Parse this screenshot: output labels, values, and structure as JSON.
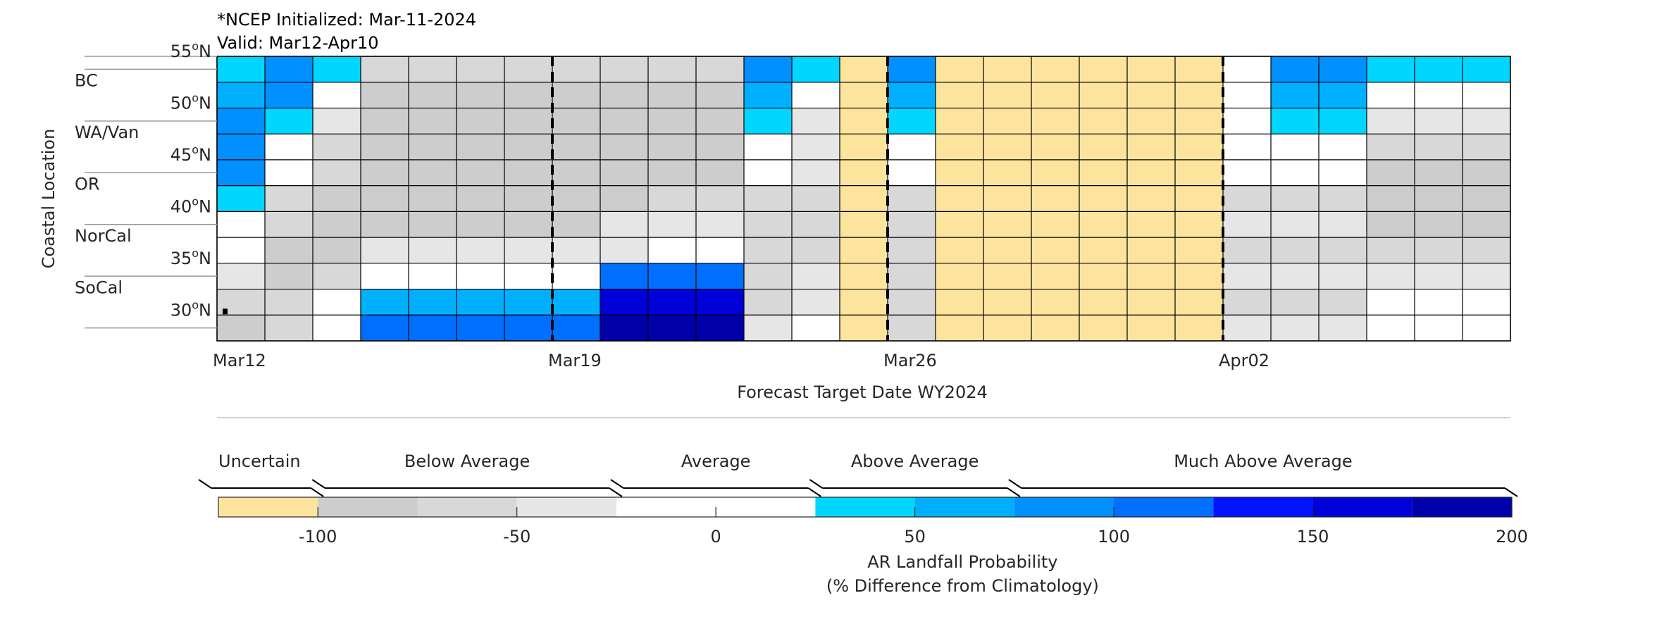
{
  "header": {
    "initialized": "*NCEP Initialized: Mar-11-2024",
    "valid": "Valid: Mar12-Apr10"
  },
  "chart_data": {
    "type": "heatmap",
    "xlabel": "Forecast Target Date WY2024",
    "ylabel": "Coastal Location",
    "x_tick_labels": [
      "Mar12",
      "Mar19",
      "Mar26",
      "Apr02"
    ],
    "x_tick_columns": [
      0,
      7,
      14,
      21
    ],
    "dashed_line_columns": [
      7,
      14,
      21
    ],
    "lat_tick_labels": [
      "55°N",
      "50°N",
      "45°N",
      "40°N",
      "35°N",
      "30°N"
    ],
    "region_labels": [
      "BC",
      "WA/Van",
      "OR",
      "NorCal",
      "SoCal"
    ],
    "num_columns": 27,
    "row_latitudes": [
      55,
      52.5,
      50,
      47.5,
      45,
      42.5,
      40,
      37.5,
      35,
      32.5,
      30,
      27.5
    ],
    "category_codes": {
      "U": "Uncertain",
      "g1": "Below Average (-100 to -75)",
      "g2": "Below Average (-75 to -50)",
      "g3": "Below Average (-50 to -25)",
      "w": "Average (-25 to 25)",
      "b1": "Above Average (25 to 50)",
      "b2": "Above Average (50 to 75)",
      "b3": "Much Above Average (75 to 100)",
      "b4": "Much Above Average (100 to 125)",
      "b5": "Much Above Average (125 to 150)",
      "b6": "Much Above Average (150 to 175)",
      "b7": "Much Above Average (175 to 200)"
    },
    "grid": [
      [
        "b1",
        "b3",
        "b1",
        "g2",
        "g2",
        "g2",
        "g2",
        "g2",
        "g2",
        "g2",
        "g2",
        "b3",
        "b1",
        "U",
        "b3",
        "U",
        "U",
        "U",
        "U",
        "U",
        "U",
        "w",
        "b3",
        "b3",
        "b1",
        "b1",
        "b1"
      ],
      [
        "b2",
        "b3",
        "w",
        "g1",
        "g1",
        "g1",
        "g1",
        "g1",
        "g1",
        "g1",
        "g1",
        "b2",
        "w",
        "U",
        "b2",
        "U",
        "U",
        "U",
        "U",
        "U",
        "U",
        "w",
        "b2",
        "b2",
        "w",
        "w",
        "w"
      ],
      [
        "b3",
        "b1",
        "g3",
        "g1",
        "g1",
        "g1",
        "g1",
        "g1",
        "g1",
        "g1",
        "g1",
        "b1",
        "g3",
        "U",
        "b1",
        "U",
        "U",
        "U",
        "U",
        "U",
        "U",
        "w",
        "b1",
        "b1",
        "g3",
        "g3",
        "g3"
      ],
      [
        "b3",
        "w",
        "g2",
        "g1",
        "g1",
        "g1",
        "g1",
        "g1",
        "g1",
        "g1",
        "g1",
        "w",
        "g3",
        "U",
        "w",
        "U",
        "U",
        "U",
        "U",
        "U",
        "U",
        "w",
        "w",
        "w",
        "g2",
        "g2",
        "g2"
      ],
      [
        "b3",
        "w",
        "g2",
        "g1",
        "g1",
        "g1",
        "g1",
        "g1",
        "g1",
        "g1",
        "g1",
        "w",
        "g3",
        "U",
        "w",
        "U",
        "U",
        "U",
        "U",
        "U",
        "U",
        "w",
        "w",
        "w",
        "g1",
        "g1",
        "g1"
      ],
      [
        "b1",
        "g2",
        "g1",
        "g1",
        "g1",
        "g1",
        "g1",
        "g1",
        "g1",
        "g2",
        "g2",
        "g2",
        "g2",
        "U",
        "g2",
        "U",
        "U",
        "U",
        "U",
        "U",
        "U",
        "g2",
        "g2",
        "g2",
        "g1",
        "g1",
        "g1"
      ],
      [
        "w",
        "g2",
        "g1",
        "g1",
        "g1",
        "g1",
        "g1",
        "g1",
        "g3",
        "g3",
        "g3",
        "g2",
        "g2",
        "U",
        "g2",
        "U",
        "U",
        "U",
        "U",
        "U",
        "U",
        "g3",
        "g3",
        "g3",
        "g1",
        "g1",
        "g1"
      ],
      [
        "w",
        "g1",
        "g1",
        "g3",
        "g3",
        "g3",
        "g3",
        "g3",
        "g3",
        "w",
        "w",
        "g2",
        "g2",
        "U",
        "g2",
        "U",
        "U",
        "U",
        "U",
        "U",
        "U",
        "g2",
        "g2",
        "g2",
        "g2",
        "g2",
        "g2"
      ],
      [
        "g3",
        "g1",
        "g2",
        "w",
        "w",
        "w",
        "w",
        "w",
        "b4",
        "b4",
        "b4",
        "g2",
        "g3",
        "U",
        "g2",
        "U",
        "U",
        "U",
        "U",
        "U",
        "U",
        "g3",
        "g3",
        "g3",
        "g3",
        "g3",
        "g3"
      ],
      [
        "g2",
        "g2",
        "w",
        "b2",
        "b2",
        "b2",
        "b2",
        "b2",
        "b6",
        "b6",
        "b6",
        "g2",
        "g3",
        "U",
        "g2",
        "U",
        "U",
        "U",
        "U",
        "U",
        "U",
        "g2",
        "g2",
        "g2",
        "w",
        "w",
        "w"
      ],
      [
        "g1",
        "g2",
        "w",
        "b4",
        "b4",
        "b4",
        "b4",
        "b4",
        "b7",
        "b7",
        "b7",
        "g3",
        "w",
        "U",
        "g2",
        "U",
        "U",
        "U",
        "U",
        "U",
        "U",
        "g3",
        "g3",
        "g3",
        "w",
        "w",
        "w"
      ]
    ],
    "colorbar": {
      "label_line1": "AR Landfall Probability",
      "label_line2": "(% Difference from Climatology)",
      "tick_labels": [
        "-100",
        "-50",
        "0",
        "50",
        "100",
        "150",
        "200"
      ],
      "tick_values": [
        -100,
        -50,
        0,
        50,
        100,
        150,
        200
      ],
      "range": [
        -125,
        200
      ],
      "segments": [
        {
          "from": -125,
          "to": -100,
          "color": "#FDE49D"
        },
        {
          "from": -100,
          "to": -75,
          "color": "#CDCDCD"
        },
        {
          "from": -75,
          "to": -50,
          "color": "#D8D8D8"
        },
        {
          "from": -50,
          "to": -25,
          "color": "#E6E6E6"
        },
        {
          "from": -25,
          "to": 25,
          "color": "#FFFFFF"
        },
        {
          "from": 25,
          "to": 50,
          "color": "#00D6FF"
        },
        {
          "from": 50,
          "to": 75,
          "color": "#00B0FF"
        },
        {
          "from": 75,
          "to": 100,
          "color": "#0090FF"
        },
        {
          "from": 100,
          "to": 125,
          "color": "#006EFF"
        },
        {
          "from": 125,
          "to": 150,
          "color": "#0013FF"
        },
        {
          "from": 150,
          "to": 175,
          "color": "#0000D9"
        },
        {
          "from": 175,
          "to": 200,
          "color": "#0000AA"
        }
      ],
      "groups": [
        {
          "label": "Uncertain",
          "from": -125,
          "to": -100
        },
        {
          "label": "Below Average",
          "from": -100,
          "to": -25
        },
        {
          "label": "Average",
          "from": -25,
          "to": 25
        },
        {
          "label": "Above Average",
          "from": 25,
          "to": 75
        },
        {
          "label": "Much Above Average",
          "from": 75,
          "to": 200
        }
      ]
    },
    "colors": {
      "U": "#FDE49D",
      "g1": "#CDCDCD",
      "g2": "#D8D8D8",
      "g3": "#E6E6E6",
      "w": "#FFFFFF",
      "b1": "#00D6FF",
      "b2": "#00B0FF",
      "b3": "#0090FF",
      "b4": "#006EFF",
      "b5": "#0013FF",
      "b6": "#0000D9",
      "b7": "#0000AA"
    },
    "grid_on": true,
    "legend": "bottom"
  }
}
